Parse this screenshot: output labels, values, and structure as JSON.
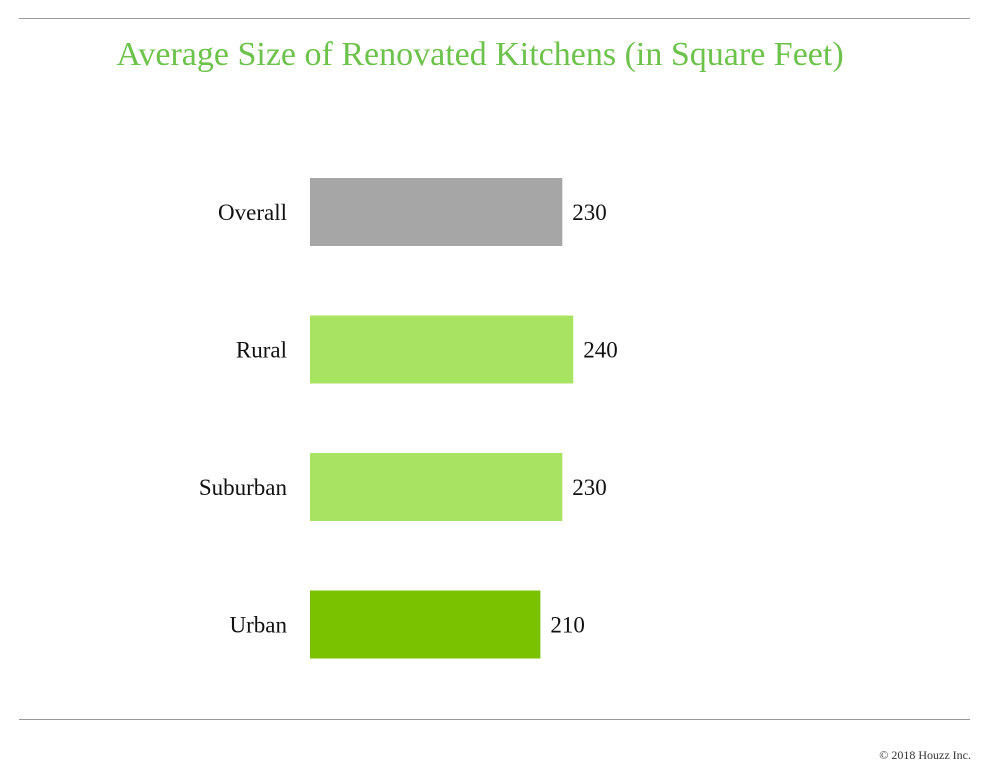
{
  "page": {
    "title": "Average Size of Renovated Kitchens (in Square Feet)",
    "footer": "© 2018 Houzz Inc."
  },
  "colors": {
    "title": "#6cc24a",
    "rule": "#9a9a9a"
  },
  "chart_data": {
    "type": "bar",
    "orientation": "horizontal",
    "title": "Average Size of Renovated Kitchens (in Square Feet)",
    "xlabel": "",
    "ylabel": "",
    "categories": [
      "Overall",
      "Rural",
      "Suburban",
      "Urban"
    ],
    "values": [
      230,
      240,
      230,
      210
    ],
    "data_labels": [
      "230",
      "240",
      "230",
      "210"
    ],
    "bar_colors": [
      "#a6a6a6",
      "#a8e462",
      "#a8e462",
      "#7ac200"
    ],
    "xlim": [
      0,
      240
    ],
    "axes_visible": false,
    "grid": false,
    "legend": "none"
  }
}
